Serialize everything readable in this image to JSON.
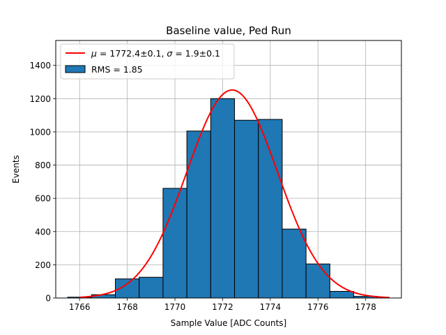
{
  "chart_data": {
    "type": "bar",
    "title": "Baseline value, Ped Run",
    "xlabel": "Sample Value [ADC Counts]",
    "ylabel": "Events",
    "xlim": [
      1765,
      1779.5
    ],
    "ylim": [
      0,
      1550
    ],
    "xticks": [
      1766,
      1768,
      1770,
      1772,
      1774,
      1776,
      1778
    ],
    "yticks": [
      0,
      200,
      400,
      600,
      800,
      1000,
      1200,
      1400
    ],
    "grid": true,
    "legend_position": "top-left",
    "histogram": {
      "name": "RMS = 1.85",
      "color": "#1f77b4",
      "edge_color": "#000000",
      "bin_edges": [
        1765.5,
        1766.5,
        1767.5,
        1768.5,
        1769.5,
        1770.5,
        1771.5,
        1772.5,
        1773.5,
        1774.5,
        1775.5,
        1776.5,
        1777.5,
        1778.5
      ],
      "values": [
        5,
        20,
        115,
        125,
        660,
        1005,
        1200,
        1070,
        1075,
        415,
        205,
        40,
        10
      ]
    },
    "fit": {
      "name": "μ = 1772.4±0.1, σ = 1.9±0.1",
      "name_parts": {
        "mu_symbol": "μ",
        "mu_text": " = 1772.4±0.1, ",
        "sigma_symbol": "σ",
        "sigma_text": " = 1.9±0.1"
      },
      "color": "#ff0000",
      "function": "gaussian",
      "amplitude": 1252,
      "mu": 1772.4,
      "sigma": 1.9,
      "x_range": [
        1766,
        1779
      ]
    },
    "legend_rms_label": "RMS = 1.85"
  }
}
